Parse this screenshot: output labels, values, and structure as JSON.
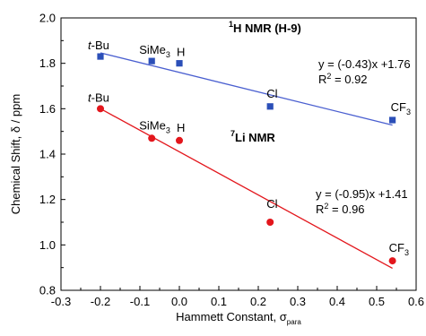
{
  "chart_data": {
    "type": "scatter",
    "xlabel": "Hammett Constant, σ",
    "xlabel_sub": "para",
    "ylabel": "Chemical Shift, δ / ppm",
    "xlim": [
      -0.3,
      0.6
    ],
    "ylim": [
      0.8,
      2.0
    ],
    "x_ticks": [
      -0.3,
      -0.2,
      -0.1,
      0.0,
      0.1,
      0.2,
      0.3,
      0.4,
      0.5,
      0.6
    ],
    "y_ticks": [
      0.8,
      1.0,
      1.2,
      1.4,
      1.6,
      1.8,
      2.0
    ],
    "x_tick_labels": [
      "-0.3",
      "-0.2",
      "-0.1",
      "0.0",
      "0.1",
      "0.2",
      "0.3",
      "0.4",
      "0.5",
      "0.6"
    ],
    "y_tick_labels": [
      "0.8",
      "1.0",
      "1.2",
      "1.4",
      "1.6",
      "1.8",
      "2.0"
    ],
    "grid": false,
    "series": [
      {
        "title_sup": "1",
        "title_main": "H NMR (H-9)",
        "marker": "square",
        "color": "#2b4fb8",
        "line_color": "#4a5fd0",
        "points": [
          {
            "x": -0.2,
            "y": 1.83,
            "label": "t-Bu"
          },
          {
            "x": -0.07,
            "y": 1.81,
            "label": "SiMe3"
          },
          {
            "x": 0.0,
            "y": 1.8,
            "label": "H"
          },
          {
            "x": 0.23,
            "y": 1.61,
            "label": "Cl"
          },
          {
            "x": 0.54,
            "y": 1.55,
            "label": "CF3"
          }
        ],
        "fit": {
          "slope": -0.43,
          "intercept": 1.76,
          "x_range": [
            -0.2,
            0.54
          ]
        },
        "equation": "y = (-0.43)x +1.76",
        "r2_label": "R",
        "r2_value": " = 0.92"
      },
      {
        "title_sup": "7",
        "title_main": "Li NMR",
        "marker": "circle",
        "color": "#e3161c",
        "line_color": "#e3161c",
        "points": [
          {
            "x": -0.2,
            "y": 1.6,
            "label": "t-Bu"
          },
          {
            "x": -0.07,
            "y": 1.47,
            "label": "SiMe3"
          },
          {
            "x": 0.0,
            "y": 1.46,
            "label": "H"
          },
          {
            "x": 0.23,
            "y": 1.1,
            "label": "Cl"
          },
          {
            "x": 0.54,
            "y": 0.93,
            "label": "CF3"
          }
        ],
        "fit": {
          "slope": -0.95,
          "intercept": 1.41,
          "x_range": [
            -0.2,
            0.54
          ]
        },
        "equation": "y = (-0.95)x +1.41",
        "r2_label": "R",
        "r2_value": " = 0.96"
      }
    ]
  }
}
